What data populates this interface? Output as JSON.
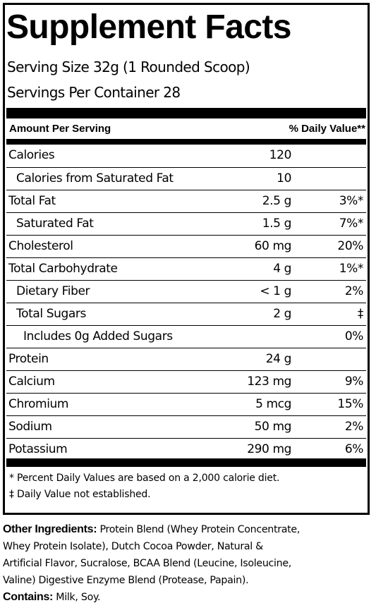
{
  "title": "Supplement Facts",
  "serving_size": "Serving Size 32g (1 Rounded Scoop)",
  "servings_per_container": "Servings Per Container  28",
  "header": {
    "amount_per_serving": "Amount Per Serving",
    "daily_value": "% Daily Value**"
  },
  "rows": [
    {
      "name": "Calories",
      "amount": "120",
      "dv": ""
    },
    {
      "name": "Calories from Saturated Fat",
      "amount": "10",
      "dv": ""
    },
    {
      "name": "Total Fat",
      "amount": "2.5 g",
      "dv": "3%*"
    },
    {
      "name": "Saturated Fat",
      "amount": "1.5 g",
      "dv": "7%*"
    },
    {
      "name": "Cholesterol",
      "amount": "60 mg",
      "dv": "20%"
    },
    {
      "name": "Total Carbohydrate",
      "amount": "4 g",
      "dv": "1%*"
    },
    {
      "name": "Dietary Fiber",
      "amount": "< 1 g",
      "dv": "2%"
    },
    {
      "name": "Total Sugars",
      "amount": "2 g",
      "dv": "‡"
    },
    {
      "name": "Includes 0g Added Sugars",
      "amount": "",
      "dv": "0%"
    },
    {
      "name": "Protein",
      "amount": "24 g",
      "dv": ""
    },
    {
      "name": "Calcium",
      "amount": "123 mg",
      "dv": "9%"
    },
    {
      "name": "Chromium",
      "amount": "5 mcg",
      "dv": "15%"
    },
    {
      "name": "Sodium",
      "amount": "50 mg",
      "dv": "2%"
    },
    {
      "name": "Potassium",
      "amount": "290 mg",
      "dv": "6%"
    }
  ],
  "footnotes": [
    "* Percent Daily Values are based on a 2,000 calorie diet.",
    "‡ Daily Value not established."
  ],
  "other_ingredients": {
    "label": "Other Ingredients:",
    "lines": [
      "Protein Blend (Whey Protein Concentrate,",
      "Whey Protein Isolate), Dutch Cocoa Powder, Natural &",
      "Artificial Flavor, Sucralose, BCAA Blend (Leucine, Isoleucine,",
      "Valine) Digestive Enzyme Blend (Protease, Papain)."
    ]
  },
  "contains": {
    "label": "Contains:",
    "text": "Milk, Soy."
  }
}
